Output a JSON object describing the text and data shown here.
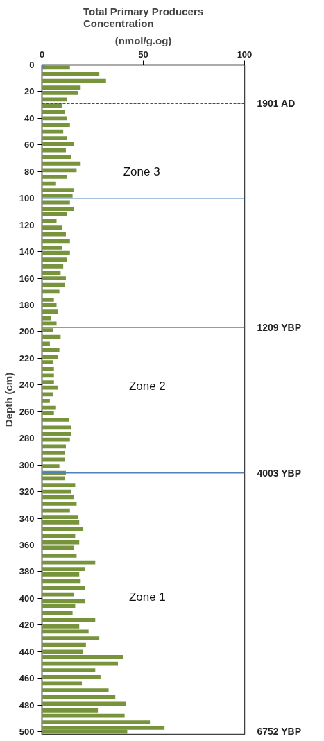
{
  "chart_data": {
    "type": "bar",
    "orientation": "horizontal",
    "title": "Total Primary Producers\nConcentration",
    "xlabel": "(nmol/g.og)",
    "ylabel": "Depth (cm)",
    "x": [
      2,
      7,
      12,
      17,
      21,
      26,
      30.5,
      35.5,
      40,
      45,
      50,
      55,
      59.5,
      64,
      69,
      74,
      79,
      84,
      89,
      94,
      98,
      103,
      108,
      112,
      117,
      122,
      127,
      132,
      137,
      141,
      146,
      151,
      156,
      160,
      165,
      170,
      176,
      180,
      185,
      190,
      194,
      199,
      204,
      209,
      214,
      219,
      223,
      228,
      233,
      238,
      242,
      247,
      252,
      257,
      261,
      266,
      272,
      277,
      281,
      286,
      291,
      296,
      301,
      306,
      310,
      315,
      320,
      324,
      329,
      334,
      339,
      343,
      348,
      353,
      358,
      362,
      368,
      373,
      378,
      382,
      387,
      392,
      397,
      402,
      406,
      411,
      416,
      421,
      425,
      430,
      435,
      440,
      444,
      449,
      454,
      459,
      464,
      469,
      474,
      479,
      484,
      488,
      493,
      497,
      500
    ],
    "series": [
      {
        "color": "#77933c",
        "values": [
          13.8,
          28.3,
          31.6,
          19.1,
          17.8,
          12.5,
          9.9,
          11.2,
          12.5,
          13.8,
          10.5,
          12.5,
          15.8,
          11.8,
          14.5,
          19.1,
          17.1,
          12.5,
          6.6,
          15.8,
          15.1,
          13.8,
          15.8,
          12.5,
          7.2,
          9.9,
          11.8,
          13.8,
          9.9,
          13.8,
          12.5,
          10.5,
          9.2,
          11.8,
          11.2,
          8.6,
          5.9,
          7.2,
          7.9,
          4.6,
          7.2,
          5.3,
          9.2,
          3.9,
          8.6,
          7.9,
          5.3,
          5.9,
          5.9,
          5.9,
          7.9,
          5.3,
          3.9,
          6.6,
          5.9,
          13.2,
          14.5,
          14.5,
          13.8,
          11.8,
          11.2,
          11.2,
          8.6,
          11.8,
          11.2,
          16.4,
          14.5,
          15.8,
          17.1,
          13.8,
          17.8,
          18.4,
          20.4,
          16.4,
          18.4,
          15.8,
          17.1,
          26.3,
          21.1,
          18.4,
          19.1,
          21.1,
          15.8,
          21.1,
          16.4,
          15.1,
          26.3,
          18.4,
          23,
          28.3,
          21.7,
          20.4,
          40.1,
          37.5,
          26.3,
          28.9,
          19.7,
          32.9,
          36.2,
          41.4,
          27.6,
          40.8,
          53.3,
          60.5,
          42.1
        ]
      },
      {
        "type": "scatter",
        "marker": "diamond",
        "color": "#4f81bd",
        "x": [
          0
        ],
        "values": [
          0
        ]
      }
    ],
    "xlim": [
      0,
      100
    ],
    "xticks": [
      0,
      50,
      100
    ],
    "ylim": [
      502,
      0
    ],
    "yticks": [
      0,
      20,
      40,
      60,
      80,
      100,
      120,
      140,
      160,
      180,
      200,
      220,
      240,
      260,
      280,
      300,
      320,
      340,
      360,
      380,
      400,
      420,
      440,
      460,
      480,
      500
    ],
    "grid": false,
    "ref_lines": [
      {
        "axis": "y",
        "value": 29,
        "label": "1901  AD",
        "color": "#ff0000",
        "line_style": "dashed"
      },
      {
        "axis": "y",
        "value": 100,
        "color": "#4f81bd"
      },
      {
        "axis": "y",
        "value": 197,
        "label": "1209  YBP",
        "color": "#4f81bd"
      },
      {
        "axis": "y",
        "value": 306,
        "label": "4003  YBP",
        "color": "#4f81bd"
      }
    ],
    "annotations": [
      "6752  YBP",
      "Zone  3",
      "Zone 2",
      "Zone 1"
    ]
  }
}
